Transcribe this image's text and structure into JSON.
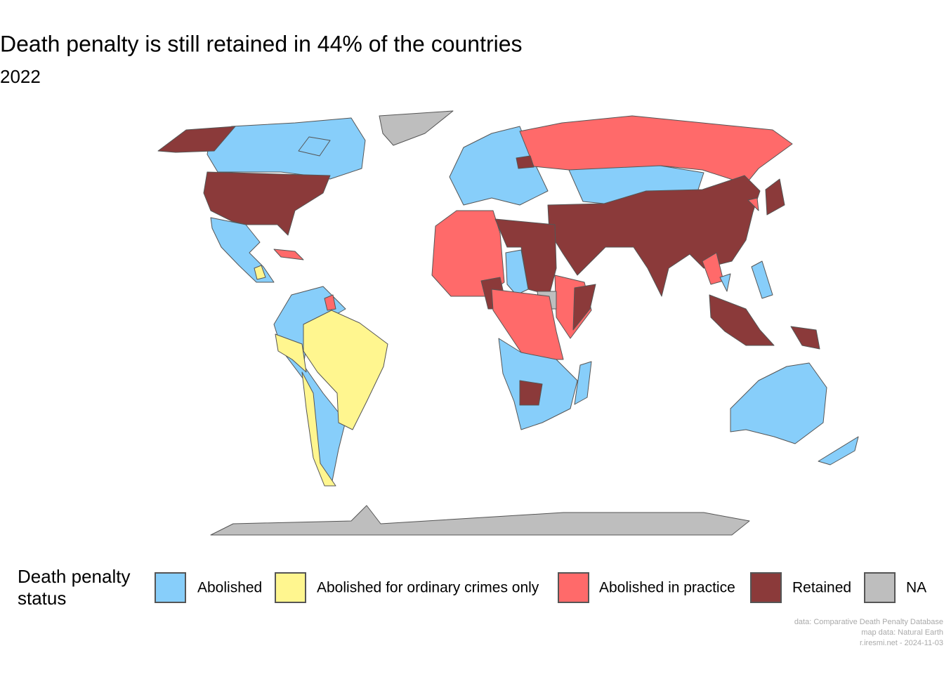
{
  "title": "Death penalty is still retained in 44% of the countries",
  "subtitle": "2022",
  "legend": {
    "title": "Death penalty status",
    "items": [
      {
        "label": "Abolished",
        "color": "#87cefa"
      },
      {
        "label": "Abolished for ordinary crimes only",
        "color": "#fff68f"
      },
      {
        "label": "Abolished in practice",
        "color": "#ff6a6a"
      },
      {
        "label": "Retained",
        "color": "#8b3a3a"
      },
      {
        "label": "NA",
        "color": "#bebebe"
      }
    ]
  },
  "caption": [
    "data: Comparative Death Penalty Database",
    "map data: Natural Earth",
    "r.iresmi.net - 2024-11-03"
  ]
}
